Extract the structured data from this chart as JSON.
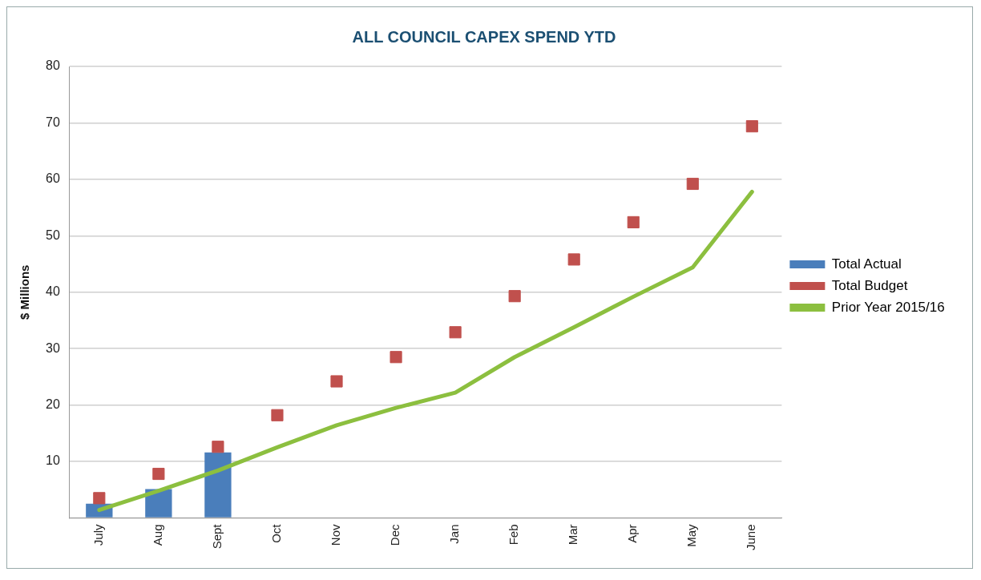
{
  "chart_data": {
    "type": "bar",
    "title": "ALL COUNCIL CAPEX SPEND YTD",
    "ylabel": "$ Millions",
    "categories": [
      "July",
      "Aug",
      "Sept",
      "Oct",
      "Nov",
      "Dec",
      "Jan",
      "Feb",
      "Mar",
      "Apr",
      "May",
      "June"
    ],
    "series": [
      {
        "name": "Total Actual",
        "color": "#4a7ebb",
        "values": [
          2.5,
          5.1,
          11.6,
          null,
          null,
          null,
          null,
          null,
          null,
          null,
          null,
          null
        ]
      },
      {
        "name": "Total Budget",
        "type": "scatter",
        "color": "#c0504d",
        "marker": "square",
        "x": [
          "July",
          "Aug",
          "Sept",
          "Oct",
          "Nov",
          "Dec",
          "Jan",
          "Feb",
          "Mar",
          "Apr",
          "May",
          "June"
        ],
        "values": [
          3.5,
          7.8,
          12.6,
          18.2,
          24.2,
          28.5,
          32.9,
          39.3,
          45.8,
          52.4,
          59.2,
          69.4
        ]
      },
      {
        "name": "Prior Year 2015/16",
        "type": "line",
        "color": "#8cbf3f",
        "marker": "none",
        "values": [
          1.4,
          4.8,
          8.4,
          12.5,
          16.4,
          19.5,
          22.2,
          28.5,
          33.8,
          39.2,
          44.4,
          57.8
        ]
      }
    ],
    "ylim": [
      0,
      80
    ],
    "yticks": [
      {
        "value": 0,
        "label": null
      },
      10,
      20,
      30,
      40,
      50,
      60,
      70,
      80
    ],
    "grid": "y",
    "legend": "right"
  }
}
